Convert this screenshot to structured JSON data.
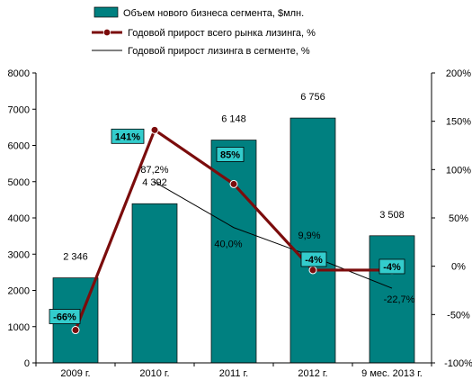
{
  "chart_data": {
    "type": "bar",
    "categories": [
      "2009 г.",
      "2010 г.",
      "2011 г.",
      "2012 г.",
      "9 мес. 2013 г."
    ],
    "series": [
      {
        "name": "Объем нового бизнеса сегмента, $млн.",
        "type": "bar",
        "axis": "left",
        "color": "#008080",
        "values": [
          2346,
          4392,
          6148,
          6756,
          3508
        ],
        "labels": [
          "2 346",
          "4 392",
          "6 148",
          "6 756",
          "3 508"
        ]
      },
      {
        "name": "Годовой прирост всего рынка лизинга, %",
        "type": "line",
        "axis": "right",
        "color": "#7B0C0C",
        "values": [
          -66,
          141,
          85,
          -4,
          -4
        ],
        "labels": [
          "-66%",
          "141%",
          "85%",
          "-4%",
          "-4%"
        ]
      },
      {
        "name": "Годовой прирост лизинга в сегменте, %",
        "type": "line",
        "axis": "right",
        "color": "#000000",
        "values": [
          null,
          87.2,
          40.0,
          9.9,
          -22.7
        ],
        "labels": [
          "",
          "87,2%",
          "40,0%",
          "9,9%",
          "-22,7%"
        ]
      }
    ],
    "y_left": {
      "min": 0,
      "max": 8000,
      "ticks": [
        0,
        1000,
        2000,
        3000,
        4000,
        5000,
        6000,
        7000,
        8000
      ]
    },
    "y_right": {
      "min": -100,
      "max": 200,
      "ticks": [
        -100,
        -50,
        0,
        50,
        100,
        150,
        200
      ],
      "tick_labels": [
        "-100%",
        "-50%",
        "0%",
        "50%",
        "100%",
        "150%",
        "200%"
      ]
    },
    "grid": false,
    "legend_position": "top"
  }
}
